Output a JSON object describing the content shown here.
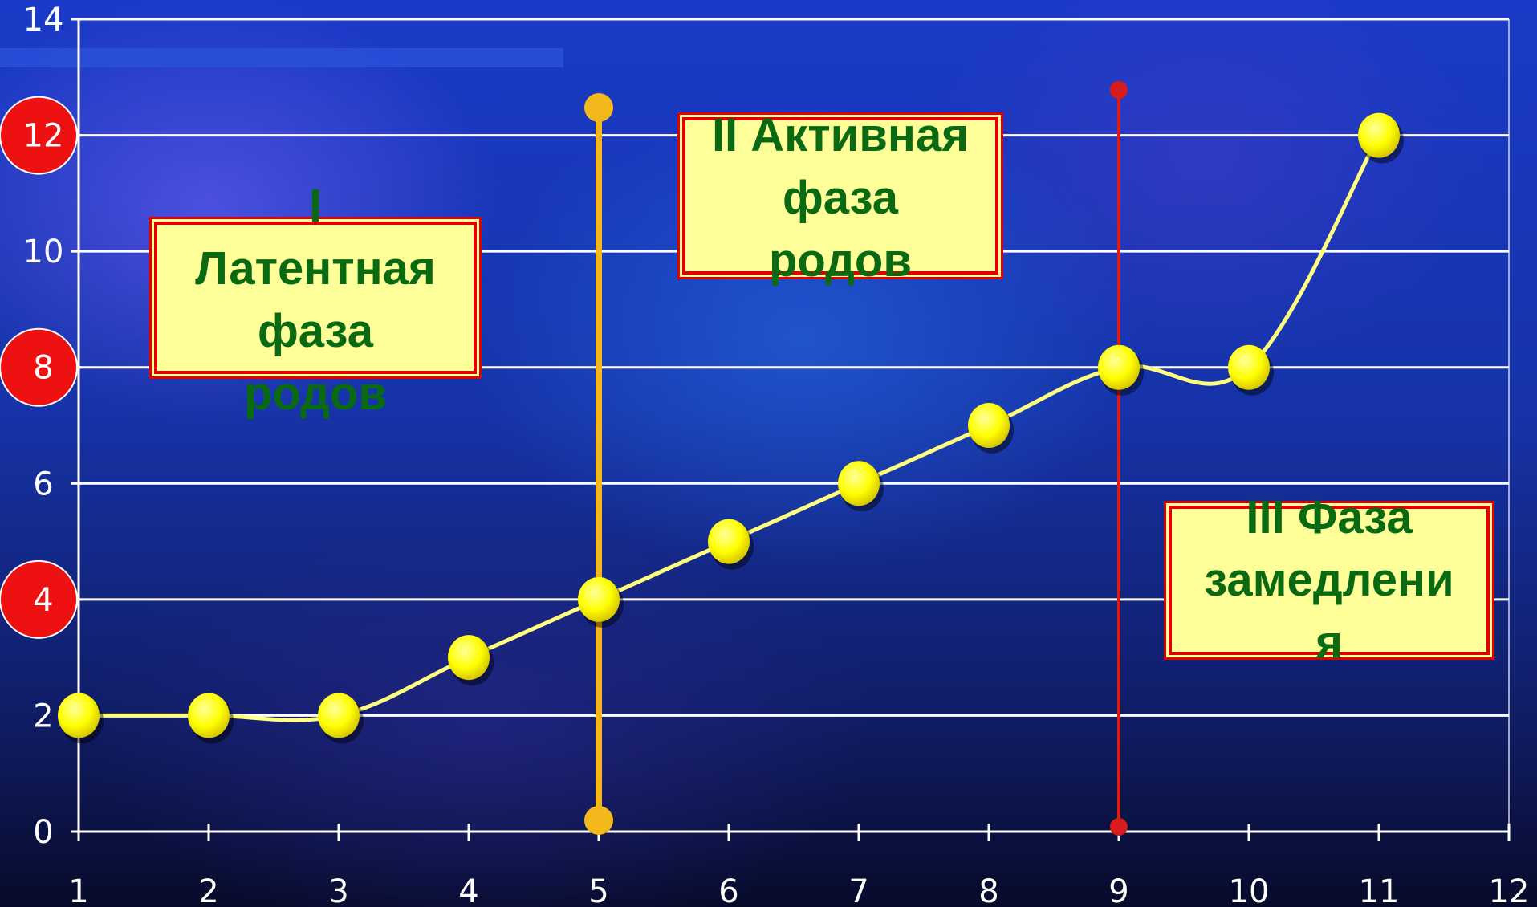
{
  "chart_data": {
    "type": "line",
    "x": [
      1,
      2,
      3,
      4,
      5,
      6,
      7,
      8,
      9,
      10,
      11
    ],
    "y": [
      2,
      2,
      2,
      3,
      4,
      5,
      6,
      7,
      8,
      8,
      12
    ],
    "xlim": [
      1,
      12
    ],
    "ylim": [
      0,
      14
    ],
    "x_ticks": [
      1,
      2,
      3,
      4,
      5,
      6,
      7,
      8,
      9,
      10,
      11,
      12
    ],
    "y_ticks": [
      0,
      2,
      4,
      6,
      8,
      10,
      12,
      14
    ],
    "highlighted_y_ticks": [
      4,
      8,
      12
    ],
    "grid": true,
    "vertical_markers": [
      {
        "x": 5,
        "color": "#f2b81c"
      },
      {
        "x": 9,
        "color": "#d81b1b"
      }
    ],
    "annotations": [
      {
        "id": "phase1",
        "text": "I\nЛатентная\nфаза\nродов"
      },
      {
        "id": "phase2",
        "text": "II Активная\nфаза\nродов"
      },
      {
        "id": "phase3",
        "text": "III Фаза\nзамедлени\nя"
      }
    ],
    "colors": {
      "line": "#ffff80",
      "point": "#ffff00",
      "grid": "#ffffff",
      "tick_badge": "#ee1111",
      "label_text": "#0a6a12",
      "box_fill": "#ffff99",
      "box_border": "#e00000"
    }
  }
}
